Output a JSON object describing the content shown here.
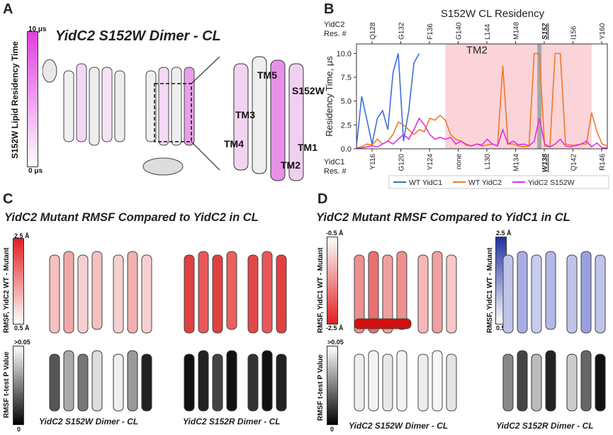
{
  "panels": {
    "A": {
      "letter": "A",
      "title": "YidC2 S152W Dimer - CL",
      "scale_label": "S152W Lipid Residency Time",
      "scale_max": "10 μs",
      "scale_min": "0 μs",
      "labels": [
        "TM5",
        "S152W",
        "TM3",
        "TM4",
        "TM1",
        "TM2"
      ],
      "color_high": "#e040e0",
      "color_low": "#ffffff"
    },
    "B": {
      "letter": "B",
      "tm_label": "TM2"
    },
    "C": {
      "letter": "C",
      "title": "YidC2 Mutant RMSF Compared to YidC2 in CL",
      "rmsf_label": "RMSF, YidC2 WT - Mutant",
      "rmsf_max": "2.5 Å",
      "rmsf_min": "0.5 Å",
      "pval_label": "RMSF t-test P Value",
      "pval_max": ">0.05",
      "pval_min": "0",
      "caption_left": "YidC2 S152W Dimer - CL",
      "caption_right": "YidC2 S152R Dimer - CL",
      "rmsf_color": "#e02020"
    },
    "D": {
      "letter": "D",
      "title": "YidC2 Mutant RMSF Compared to YidC1 in CL",
      "rmsf_label_left": "RMSF, YidC1 WT - Mutant",
      "rmsf_left_max": "-0.5 Å",
      "rmsf_left_min": "-2.5 Å",
      "rmsf_label_right": "RMSF, YidC1 WT - Mutant",
      "rmsf_right_max": "2.5 Å",
      "rmsf_right_min": "0.5 Å",
      "pval_label": "RMSF t-test P Value",
      "pval_max": ">0.05",
      "pval_min": "0",
      "caption_left": "YidC2 S152W Dimer - CL",
      "caption_right": "YidC2 S152R Dimer - CL",
      "red_color": "#e02020",
      "blue_color": "#2030a0"
    }
  },
  "chart_data": {
    "type": "line",
    "title": "S152W CL Residency",
    "ylabel": "Residency Time, μs",
    "ylim": [
      0,
      11
    ],
    "yticks": [
      "0.0",
      "2.5",
      "5.0",
      "7.5",
      "10.0"
    ],
    "top_axis_title": [
      "YidC2",
      "Res. #"
    ],
    "top_ticks": [
      "Q128",
      "G132",
      "F136",
      "G140",
      "L144",
      "M148",
      "S152",
      "I156",
      "Y160"
    ],
    "bottom_axis_title": [
      "YidC1",
      "Res. #"
    ],
    "bottom_ticks": [
      "Y116",
      "G120",
      "Y124",
      "none",
      "L130",
      "M134",
      "W138",
      "Q142",
      "R146"
    ],
    "highlight_region_start": 17,
    "highlight_region_end": 45,
    "marker_position": 35,
    "x": [
      0,
      1,
      2,
      3,
      4,
      5,
      6,
      7,
      8,
      9,
      10,
      11,
      12,
      13,
      14,
      15,
      16,
      17,
      18,
      19,
      20,
      21,
      22,
      23,
      24,
      25,
      26,
      27,
      28,
      29,
      30,
      31,
      32,
      33,
      34,
      35,
      36,
      37,
      38,
      39,
      40,
      41,
      42,
      43,
      44,
      45,
      46,
      47,
      48
    ],
    "series": [
      {
        "name": "WT YidC1",
        "color": "#3a6fd8",
        "values": [
          0.3,
          5.5,
          3.0,
          0.5,
          3.2,
          4.0,
          2.0,
          8.0,
          10.0,
          0.8,
          4.0,
          9.0,
          10.0,
          null,
          null,
          null,
          null,
          null,
          null,
          null,
          null,
          null,
          null,
          null,
          null,
          null,
          null,
          null,
          null,
          null,
          null,
          null,
          null,
          null,
          null,
          null,
          null,
          null,
          null,
          null,
          null,
          null,
          null,
          null,
          null,
          null,
          null,
          null,
          null
        ]
      },
      {
        "name": "WT YidC2",
        "color": "#f07828",
        "values": [
          0.1,
          0.2,
          0.5,
          0.4,
          1.0,
          0.5,
          0.8,
          1.5,
          2.8,
          2.5,
          2.0,
          1.5,
          2.0,
          1.8,
          3.2,
          3.0,
          3.5,
          3.0,
          1.5,
          1.0,
          0.8,
          0.5,
          0.3,
          0.5,
          0.3,
          0.4,
          0.5,
          0.3,
          8.7,
          0.5,
          0.5,
          0.3,
          0.2,
          0.3,
          10.0,
          10.0,
          0.3,
          0.2,
          10.0,
          10.0,
          0.5,
          0.4,
          0.3,
          0.5,
          0.5,
          3.8,
          1.8,
          0.5,
          0.3
        ]
      },
      {
        "name": "YidC2 S152W",
        "color": "#e030e0",
        "values": [
          0.1,
          0.1,
          0.2,
          0.3,
          0.2,
          0.5,
          0.8,
          0.5,
          1.0,
          1.5,
          1.0,
          2.0,
          3.2,
          2.5,
          1.5,
          1.0,
          1.2,
          1.0,
          1.2,
          0.5,
          0.8,
          0.4,
          0.3,
          0.5,
          0.4,
          1.0,
          0.5,
          0.3,
          2.0,
          0.5,
          0.8,
          0.4,
          0.5,
          0.3,
          0.8,
          3.2,
          0.5,
          0.2,
          0.5,
          1.0,
          0.3,
          0.2,
          0.4,
          0.5,
          0.8,
          0.2,
          0.6,
          0.1,
          0.1
        ]
      }
    ],
    "legend_placement": "bottom"
  }
}
